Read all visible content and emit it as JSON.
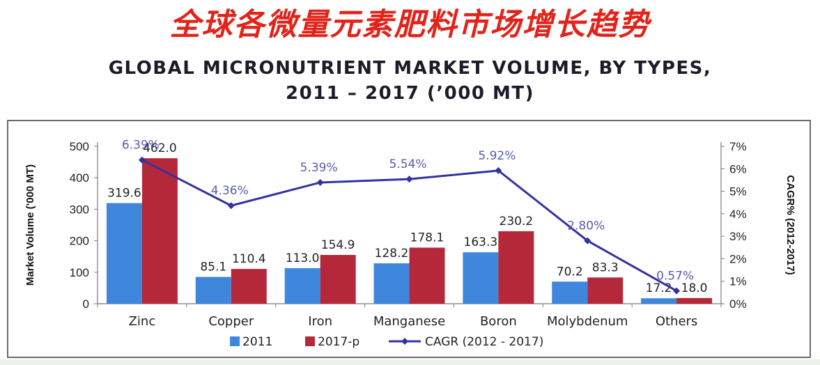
{
  "page_title_cn": "全球各微量元素肥料市场增长趋势",
  "chart_data": {
    "type": "bar",
    "title": "GLOBAL MICRONUTRIENT MARKET VOLUME, BY TYPES,",
    "subtitle": "2011 – 2017 (’000 MT)",
    "categories": [
      "Zinc",
      "Copper",
      "Iron",
      "Manganese",
      "Boron",
      "Molybdenum",
      "Others"
    ],
    "series": [
      {
        "name": "2011",
        "type": "bar",
        "axis": "left",
        "color": "#3f87dd",
        "values": [
          319.6,
          85.1,
          113.0,
          128.2,
          163.3,
          70.2,
          17.2
        ],
        "labels": [
          "319.6",
          "85.1",
          "113.0",
          "128.2",
          "163.3",
          "70.2",
          "17.2"
        ]
      },
      {
        "name": "2017-p",
        "type": "bar",
        "axis": "left",
        "color": "#b5283a",
        "values": [
          462.0,
          110.4,
          154.9,
          178.1,
          230.2,
          83.3,
          18.0
        ],
        "labels": [
          "462.0",
          "110.4",
          "154.9",
          "178.1",
          "230.2",
          "83.3",
          "18.0"
        ]
      },
      {
        "name": "CAGR (2012 - 2017)",
        "type": "line",
        "axis": "right",
        "color": "#3232a0",
        "values": [
          6.39,
          4.36,
          5.39,
          5.54,
          5.92,
          2.8,
          0.57
        ],
        "labels": [
          "6.39%",
          "4.36%",
          "5.39%",
          "5.54%",
          "5.92%",
          "2.80%",
          "0.57%"
        ]
      }
    ],
    "ylabel": "Market Volume ('000 MT)",
    "y2label": "CAGR% (2012-2017)",
    "ylim": [
      0,
      500
    ],
    "y2lim": [
      0,
      7
    ],
    "yticks": [
      "0",
      "100",
      "200",
      "300",
      "400",
      "500"
    ],
    "y2ticks": [
      "0%",
      "1%",
      "2%",
      "3%",
      "4%",
      "5%",
      "6%",
      "7%"
    ],
    "grid": false,
    "legend_placement": "bottom"
  }
}
